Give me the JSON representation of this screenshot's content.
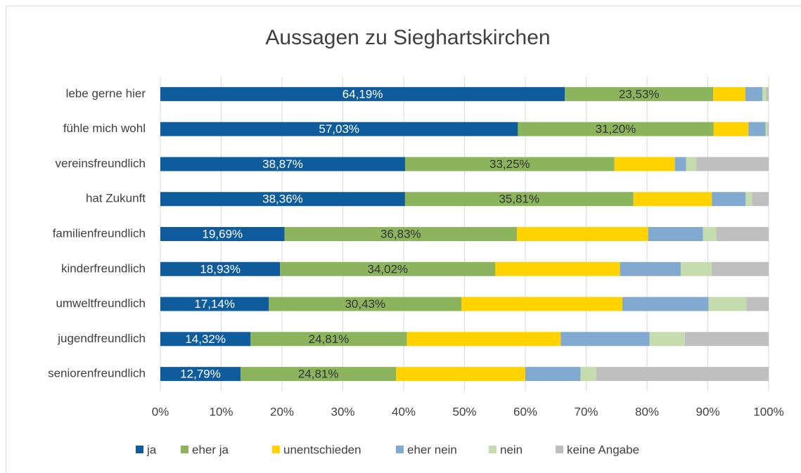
{
  "chart_data": {
    "type": "bar",
    "orientation": "horizontal",
    "stacking": "percent",
    "title": "Aussagen zu Sieghartskirchen",
    "categories": [
      "lebe gerne hier",
      "fühle mich wohl",
      "vereinsfreundlich",
      "hat Zukunft",
      "familienfreundlich",
      "kinderfreundlich",
      "umweltfreundlich",
      "jugendfreundlich",
      "seniorenfreundlich"
    ],
    "series": [
      {
        "name": "ja",
        "color": "#0f5c9c",
        "values": [
          64.19,
          57.03,
          38.87,
          38.36,
          19.69,
          18.93,
          17.14,
          14.32,
          12.79
        ],
        "value_labels": [
          "64,19%",
          "57,03%",
          "38,87%",
          "38,36%",
          "19,69%",
          "18,93%",
          "17,14%",
          "14,32%",
          "12,79%"
        ]
      },
      {
        "name": "eher ja",
        "color": "#8cb45c",
        "values": [
          23.53,
          31.2,
          33.25,
          35.81,
          36.83,
          34.02,
          30.43,
          24.81,
          24.81
        ],
        "value_labels": [
          "23,53%",
          "31,20%",
          "33,25%",
          "35,81%",
          "36,83%",
          "34,02%",
          "30,43%",
          "24,81%",
          "24,81%"
        ]
      },
      {
        "name": "unentschieden",
        "color": "#ffd200",
        "values": [
          5.1,
          5.6,
          9.6,
          12.3,
          20.8,
          19.7,
          25.4,
          24.4,
          20.6
        ]
      },
      {
        "name": "eher nein",
        "color": "#82aad0",
        "values": [
          2.7,
          2.7,
          1.8,
          5.3,
          8.7,
          9.6,
          13.6,
          14.1,
          8.8
        ]
      },
      {
        "name": "nein",
        "color": "#c5dcae",
        "values": [
          0.6,
          0.3,
          1.6,
          1.0,
          2.1,
          4.9,
          6.0,
          5.6,
          2.5
        ]
      },
      {
        "name": "keine Angabe",
        "color": "#bfbfbf",
        "values": [
          0.4,
          0.2,
          11.5,
          2.6,
          8.3,
          9.0,
          3.5,
          13.3,
          27.5
        ]
      }
    ],
    "xlim": [
      0,
      100
    ],
    "xticks": [
      {
        "value": 0,
        "label": "0%"
      },
      {
        "value": 10,
        "label": "10%"
      },
      {
        "value": 20,
        "label": "20%"
      },
      {
        "value": 30,
        "label": "30%"
      },
      {
        "value": 40,
        "label": "40%"
      },
      {
        "value": 50,
        "label": "50%"
      },
      {
        "value": 60,
        "label": "60%"
      },
      {
        "value": 70,
        "label": "70%"
      },
      {
        "value": 80,
        "label": "80%"
      },
      {
        "value": 90,
        "label": "90%"
      },
      {
        "value": 100,
        "label": "100%"
      }
    ],
    "grid": true,
    "legend": "bottom"
  }
}
